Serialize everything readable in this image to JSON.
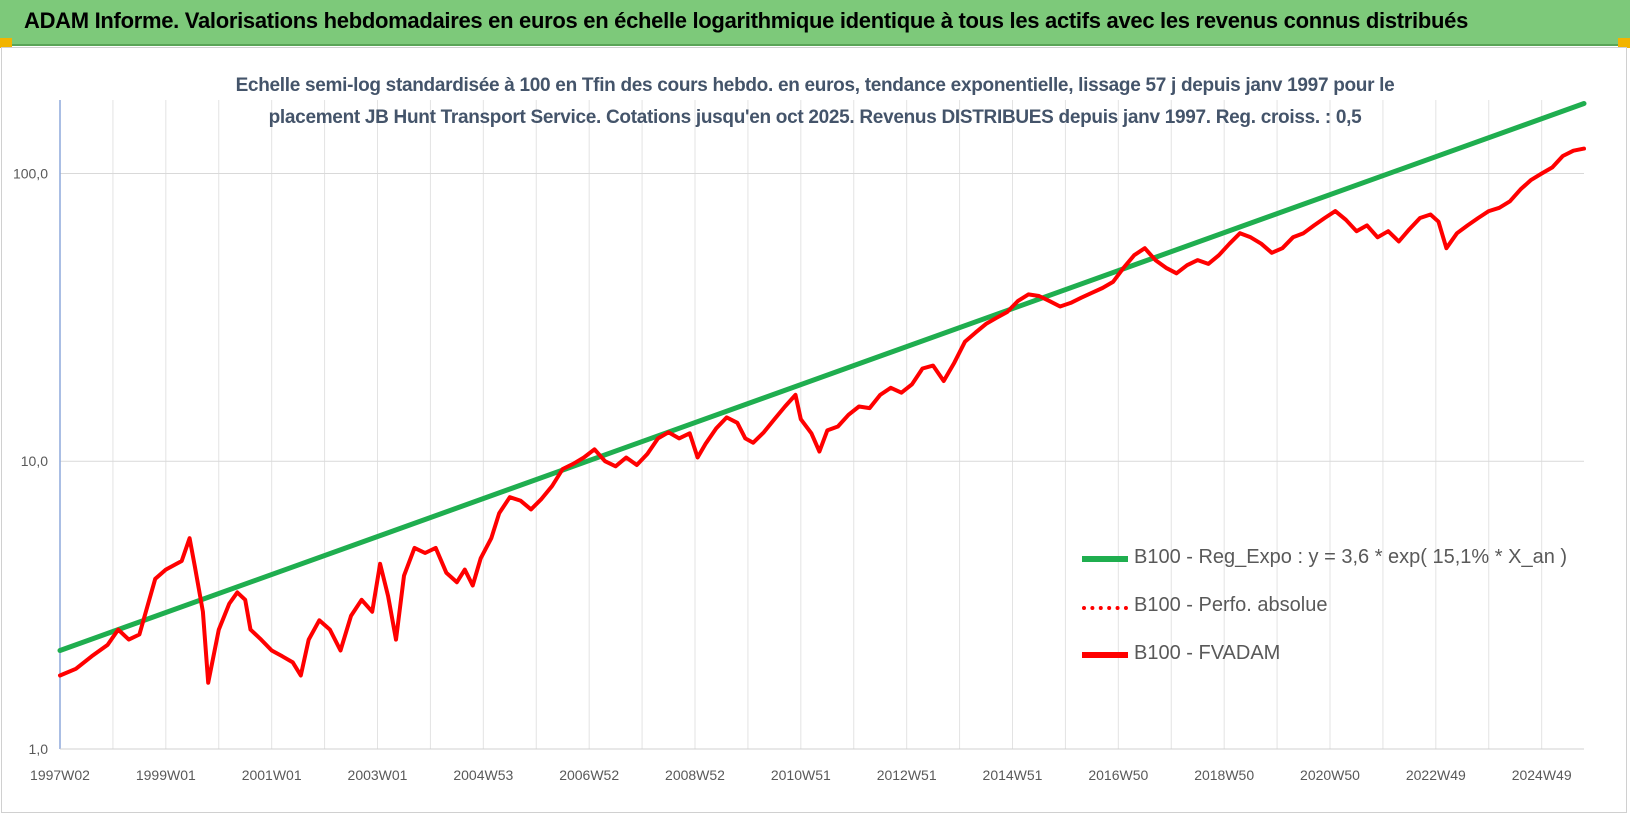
{
  "banner": {
    "title": "ADAM Informe. Valorisations hebdomadaires en euros en échelle logarithmique identique à tous les actifs avec les revenus connus distribués"
  },
  "chart_data": {
    "type": "line",
    "subtitle_line1": "Echelle semi-log standardisée à 100 en Tfin des cours hebdo. en euros, tendance exponentielle, lissage 57 j depuis janv 1997 pour le",
    "subtitle_line2": "placement JB Hunt Transport Service.  Cotations jusqu'en oct 2025. Revenus DISTRIBUES depuis janv 1997. Reg. croiss. : 0,5",
    "y_scale": "log",
    "ylim": [
      1,
      180
    ],
    "xlim": [
      1997.0,
      2025.8
    ],
    "y_ticks": [
      {
        "value": 1,
        "label": "1,0"
      },
      {
        "value": 10,
        "label": "10,0"
      },
      {
        "value": 100,
        "label": "100,0"
      }
    ],
    "x_ticks": [
      {
        "value": 1997.0,
        "label": "1997W02"
      },
      {
        "value": 1999.0,
        "label": "1999W01"
      },
      {
        "value": 2001.0,
        "label": "2001W01"
      },
      {
        "value": 2003.0,
        "label": "2003W01"
      },
      {
        "value": 2005.0,
        "label": "2004W53"
      },
      {
        "value": 2007.0,
        "label": "2006W52"
      },
      {
        "value": 2009.0,
        "label": "2008W52"
      },
      {
        "value": 2011.0,
        "label": "2010W51"
      },
      {
        "value": 2013.0,
        "label": "2012W51"
      },
      {
        "value": 2015.0,
        "label": "2014W51"
      },
      {
        "value": 2017.0,
        "label": "2016W50"
      },
      {
        "value": 2019.0,
        "label": "2018W50"
      },
      {
        "value": 2021.0,
        "label": "2020W50"
      },
      {
        "value": 2023.0,
        "label": "2022W49"
      },
      {
        "value": 2025.0,
        "label": "2024W49"
      }
    ],
    "grid": "vertical and horizontal",
    "legend_position": "bottom-right",
    "series": [
      {
        "name": "B100 - Reg_Expo : y = 3,6 * exp( 15,1% *  X_an )",
        "color": "#1fae4f",
        "style": "solid",
        "points": [
          [
            1997.0,
            2.2
          ],
          [
            2025.8,
            175
          ]
        ]
      },
      {
        "name": "B100 - Perfo. absolue",
        "color": "#ff0000",
        "style": "dotted",
        "points": []
      },
      {
        "name": "B100 - FVADAM",
        "color": "#ff0000",
        "style": "solid",
        "points": [
          [
            1997.0,
            1.8
          ],
          [
            1997.3,
            1.9
          ],
          [
            1997.6,
            2.1
          ],
          [
            1997.9,
            2.3
          ],
          [
            1998.1,
            2.6
          ],
          [
            1998.3,
            2.4
          ],
          [
            1998.5,
            2.5
          ],
          [
            1998.8,
            3.9
          ],
          [
            1999.0,
            4.2
          ],
          [
            1999.3,
            4.5
          ],
          [
            1999.45,
            5.4
          ],
          [
            1999.55,
            4.3
          ],
          [
            1999.7,
            3.0
          ],
          [
            1999.8,
            1.7
          ],
          [
            2000.0,
            2.6
          ],
          [
            2000.2,
            3.2
          ],
          [
            2000.35,
            3.5
          ],
          [
            2000.5,
            3.3
          ],
          [
            2000.6,
            2.6
          ],
          [
            2000.8,
            2.4
          ],
          [
            2001.0,
            2.2
          ],
          [
            2001.2,
            2.1
          ],
          [
            2001.4,
            2.0
          ],
          [
            2001.55,
            1.8
          ],
          [
            2001.7,
            2.4
          ],
          [
            2001.9,
            2.8
          ],
          [
            2002.1,
            2.6
          ],
          [
            2002.3,
            2.2
          ],
          [
            2002.5,
            2.9
          ],
          [
            2002.7,
            3.3
          ],
          [
            2002.9,
            3.0
          ],
          [
            2003.05,
            4.4
          ],
          [
            2003.2,
            3.4
          ],
          [
            2003.35,
            2.4
          ],
          [
            2003.5,
            4.0
          ],
          [
            2003.7,
            5.0
          ],
          [
            2003.9,
            4.8
          ],
          [
            2004.1,
            5.0
          ],
          [
            2004.3,
            4.1
          ],
          [
            2004.5,
            3.8
          ],
          [
            2004.65,
            4.2
          ],
          [
            2004.8,
            3.7
          ],
          [
            2004.95,
            4.6
          ],
          [
            2005.15,
            5.4
          ],
          [
            2005.3,
            6.6
          ],
          [
            2005.5,
            7.5
          ],
          [
            2005.7,
            7.3
          ],
          [
            2005.9,
            6.8
          ],
          [
            2006.1,
            7.4
          ],
          [
            2006.3,
            8.2
          ],
          [
            2006.5,
            9.4
          ],
          [
            2006.7,
            9.8
          ],
          [
            2006.9,
            10.3
          ],
          [
            2007.1,
            11.0
          ],
          [
            2007.3,
            10.0
          ],
          [
            2007.5,
            9.6
          ],
          [
            2007.7,
            10.3
          ],
          [
            2007.9,
            9.7
          ],
          [
            2008.1,
            10.6
          ],
          [
            2008.3,
            12.0
          ],
          [
            2008.5,
            12.6
          ],
          [
            2008.7,
            12.0
          ],
          [
            2008.9,
            12.5
          ],
          [
            2009.05,
            10.3
          ],
          [
            2009.2,
            11.5
          ],
          [
            2009.4,
            13.0
          ],
          [
            2009.6,
            14.2
          ],
          [
            2009.8,
            13.6
          ],
          [
            2009.95,
            12.0
          ],
          [
            2010.1,
            11.6
          ],
          [
            2010.3,
            12.6
          ],
          [
            2010.5,
            14.0
          ],
          [
            2010.7,
            15.5
          ],
          [
            2010.9,
            17.0
          ],
          [
            2011.0,
            14.0
          ],
          [
            2011.2,
            12.5
          ],
          [
            2011.35,
            10.8
          ],
          [
            2011.5,
            12.8
          ],
          [
            2011.7,
            13.2
          ],
          [
            2011.9,
            14.5
          ],
          [
            2012.1,
            15.5
          ],
          [
            2012.3,
            15.3
          ],
          [
            2012.5,
            17.0
          ],
          [
            2012.7,
            18.0
          ],
          [
            2012.9,
            17.3
          ],
          [
            2013.1,
            18.5
          ],
          [
            2013.3,
            21.0
          ],
          [
            2013.5,
            21.5
          ],
          [
            2013.7,
            19.0
          ],
          [
            2013.9,
            22.0
          ],
          [
            2014.1,
            26.0
          ],
          [
            2014.3,
            28.0
          ],
          [
            2014.5,
            30.0
          ],
          [
            2014.7,
            31.5
          ],
          [
            2014.9,
            33.0
          ],
          [
            2015.1,
            36.0
          ],
          [
            2015.3,
            38.0
          ],
          [
            2015.5,
            37.5
          ],
          [
            2015.7,
            36.0
          ],
          [
            2015.9,
            34.5
          ],
          [
            2016.1,
            35.5
          ],
          [
            2016.3,
            37.0
          ],
          [
            2016.5,
            38.5
          ],
          [
            2016.7,
            40.0
          ],
          [
            2016.9,
            42.0
          ],
          [
            2017.1,
            47.0
          ],
          [
            2017.3,
            52.0
          ],
          [
            2017.5,
            55.0
          ],
          [
            2017.7,
            50.0
          ],
          [
            2017.9,
            47.0
          ],
          [
            2018.1,
            45.0
          ],
          [
            2018.3,
            48.0
          ],
          [
            2018.5,
            50.0
          ],
          [
            2018.7,
            48.5
          ],
          [
            2018.9,
            52.0
          ],
          [
            2019.1,
            57.0
          ],
          [
            2019.3,
            62.0
          ],
          [
            2019.5,
            60.0
          ],
          [
            2019.7,
            57.0
          ],
          [
            2019.9,
            53.0
          ],
          [
            2020.1,
            55.0
          ],
          [
            2020.3,
            60.0
          ],
          [
            2020.5,
            62.0
          ],
          [
            2020.7,
            66.0
          ],
          [
            2020.9,
            70.0
          ],
          [
            2021.1,
            74.0
          ],
          [
            2021.3,
            69.0
          ],
          [
            2021.5,
            63.0
          ],
          [
            2021.7,
            66.0
          ],
          [
            2021.9,
            60.0
          ],
          [
            2022.1,
            63.0
          ],
          [
            2022.3,
            58.0
          ],
          [
            2022.5,
            64.0
          ],
          [
            2022.7,
            70.0
          ],
          [
            2022.9,
            72.0
          ],
          [
            2023.05,
            68.0
          ],
          [
            2023.2,
            55.0
          ],
          [
            2023.4,
            62.0
          ],
          [
            2023.6,
            66.0
          ],
          [
            2023.8,
            70.0
          ],
          [
            2024.0,
            74.0
          ],
          [
            2024.2,
            76.0
          ],
          [
            2024.4,
            80.0
          ],
          [
            2024.6,
            88.0
          ],
          [
            2024.8,
            95.0
          ],
          [
            2025.0,
            100.0
          ],
          [
            2025.2,
            105.0
          ],
          [
            2025.4,
            115.0
          ],
          [
            2025.6,
            120.0
          ],
          [
            2025.8,
            122.0
          ]
        ]
      }
    ]
  }
}
